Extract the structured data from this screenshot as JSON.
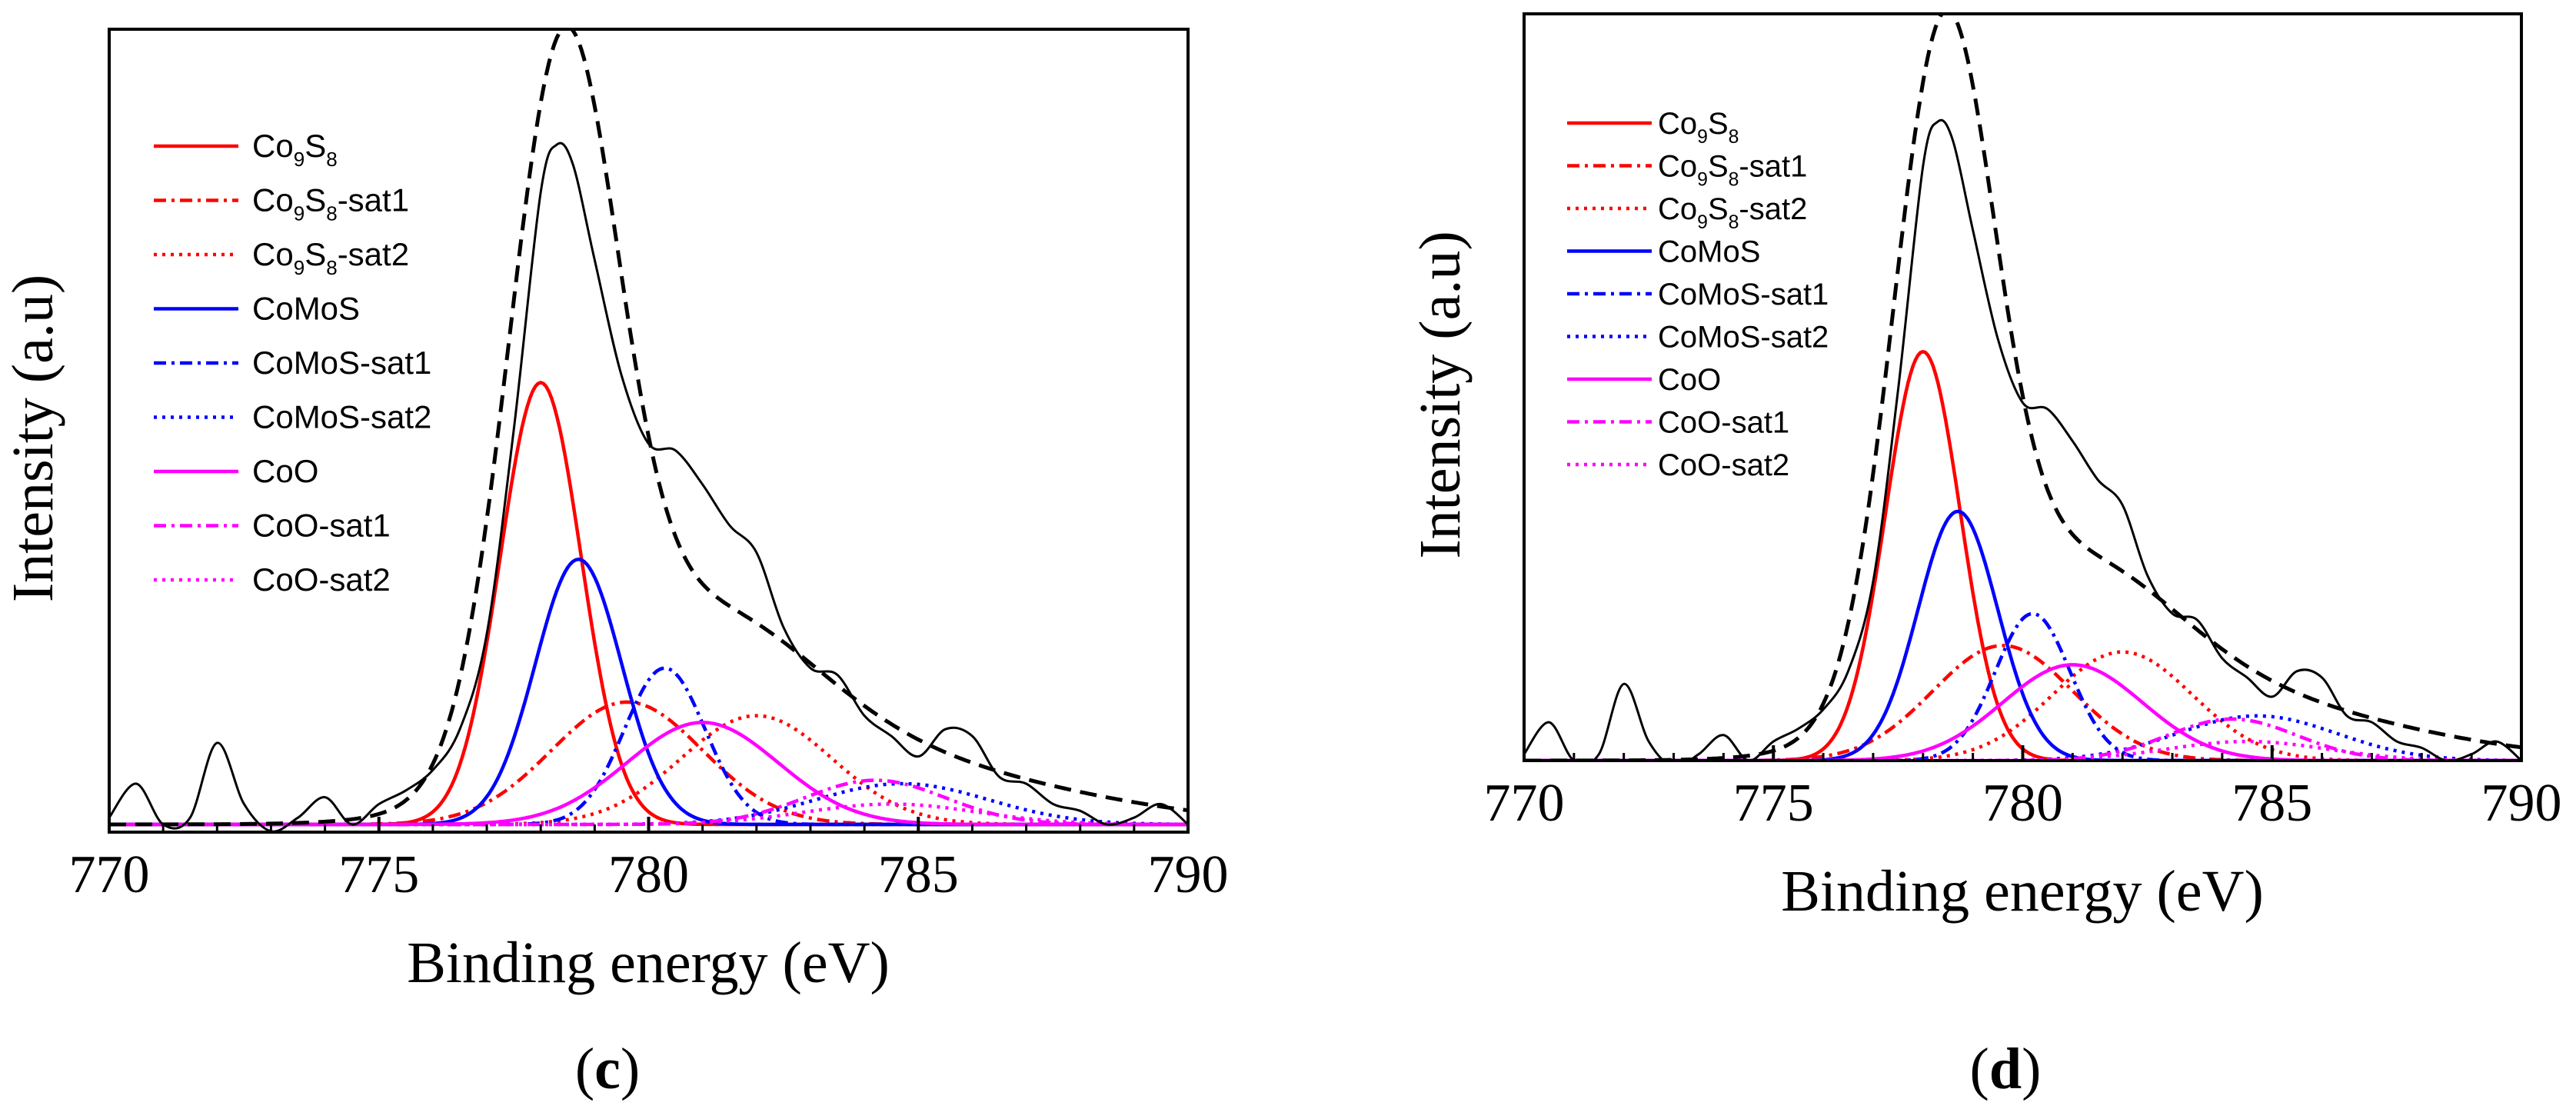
{
  "colors": {
    "axis": "#000000",
    "measured": "#000000",
    "envelope": "#000000",
    "co9s8": "#ff0000",
    "comos": "#0000ff",
    "coo": "#ff00ff"
  },
  "chart_data": [
    {
      "type": "line",
      "panel_label": "c",
      "xlabel": "Binding energy (eV)",
      "ylabel": "Intensity (a.u)",
      "xlim": [
        770,
        790
      ],
      "x_ticks": [
        "770",
        "775",
        "780",
        "785",
        "790"
      ],
      "ylim": [
        0,
        100
      ],
      "legend_position": "top-left",
      "legend": [
        {
          "base": "Co",
          "sub1": "9",
          "mid": "S",
          "sub2": "8",
          "suffix": ""
        },
        {
          "base": "Co",
          "sub1": "9",
          "mid": "S",
          "sub2": "8",
          "suffix": "-sat1"
        },
        {
          "base": "Co",
          "sub1": "9",
          "mid": "S",
          "sub2": "8",
          "suffix": "-sat2"
        },
        {
          "text": "CoMoS"
        },
        {
          "text": "CoMoS-sat1"
        },
        {
          "text": "CoMoS-sat2"
        },
        {
          "text": "CoO"
        },
        {
          "text": "CoO-sat1"
        },
        {
          "text": "CoO-sat2"
        }
      ],
      "measured": {
        "x": [
          770,
          770.5,
          771,
          771.5,
          772,
          772.5,
          773,
          773.5,
          774,
          774.5,
          775,
          775.5,
          776,
          776.5,
          777,
          777.5,
          778,
          778.3,
          778.6,
          779,
          779.5,
          780,
          780.5,
          781,
          781.5,
          782,
          782.5,
          783,
          783.5,
          784,
          784.5,
          785,
          785.5,
          786,
          786.5,
          787,
          787.5,
          788,
          788.5,
          789,
          789.5,
          790
        ],
        "y": [
          1,
          6,
          0,
          1,
          12,
          3,
          -1,
          1,
          4,
          0,
          3,
          5,
          8,
          14,
          28,
          58,
          93,
          100,
          97,
          83,
          66,
          56,
          55,
          50,
          44,
          40,
          29,
          23,
          22,
          16,
          13,
          10,
          14,
          13,
          7,
          6,
          3,
          2,
          0,
          1,
          3,
          0
        ]
      },
      "envelope": {
        "label": "fit envelope",
        "baseline": 0,
        "peaks": [
          [
            778.4,
            99.5,
            1.0
          ],
          [
            780.7,
            26,
            2.2
          ],
          [
            784.0,
            9,
            3.5
          ]
        ]
      },
      "series": [
        {
          "name": "Co9S8",
          "style": "solid",
          "color": "co9s8",
          "center": 778.0,
          "amp": 65,
          "width": 0.75
        },
        {
          "name": "Co9S8-sat1",
          "style": "dashdot",
          "color": "co9s8",
          "center": 779.6,
          "amp": 18,
          "width": 1.4
        },
        {
          "name": "Co9S8-sat2",
          "style": "dotted",
          "color": "co9s8",
          "center": 782.0,
          "amp": 16,
          "width": 1.4
        },
        {
          "name": "CoMoS",
          "style": "solid",
          "color": "comos",
          "center": 778.7,
          "amp": 39,
          "width": 0.8
        },
        {
          "name": "CoMoS-sat1",
          "style": "dashdot",
          "color": "comos",
          "center": 780.3,
          "amp": 23,
          "width": 0.75
        },
        {
          "name": "CoMoS-sat2",
          "style": "dotted",
          "color": "comos",
          "center": 784.7,
          "amp": 6,
          "width": 1.6
        },
        {
          "name": "CoO",
          "style": "solid",
          "color": "coo",
          "center": 781.0,
          "amp": 15,
          "width": 1.4
        },
        {
          "name": "CoO-sat1",
          "style": "dashdot",
          "color": "coo",
          "center": 784.2,
          "amp": 6.5,
          "width": 1.3
        },
        {
          "name": "CoO-sat2",
          "style": "dotted",
          "color": "coo",
          "center": 784.5,
          "amp": 3,
          "width": 1.6
        }
      ]
    },
    {
      "type": "line",
      "panel_label": "d",
      "xlabel": "Binding energy (eV)",
      "ylabel": "Intensity (a.u)",
      "xlim": [
        770,
        790
      ],
      "x_ticks": [
        "770",
        "775",
        "780",
        "785",
        "790"
      ],
      "ylim": [
        0,
        100
      ],
      "legend_position": "top-left",
      "legend": [
        {
          "base": "Co",
          "sub1": "9",
          "mid": "S",
          "sub2": "8",
          "suffix": ""
        },
        {
          "base": "Co",
          "sub1": "9",
          "mid": "S",
          "sub2": "8",
          "suffix": "-sat1"
        },
        {
          "base": "Co",
          "sub1": "9",
          "mid": "S",
          "sub2": "8",
          "suffix": "-sat2"
        },
        {
          "text": "CoMoS"
        },
        {
          "text": "CoMoS-sat1"
        },
        {
          "text": "CoMoS-sat2"
        },
        {
          "text": "CoO"
        },
        {
          "text": "CoO-sat1"
        },
        {
          "text": "CoO-sat2"
        }
      ],
      "measured": {
        "x": [
          770,
          770.5,
          771,
          771.5,
          772,
          772.5,
          773,
          773.5,
          774,
          774.5,
          775,
          775.5,
          776,
          776.5,
          777,
          777.5,
          778,
          778.3,
          778.6,
          779,
          779.5,
          780,
          780.5,
          781,
          781.5,
          782,
          782.5,
          783,
          783.5,
          784,
          784.5,
          785,
          785.5,
          786,
          786.5,
          787,
          787.5,
          788,
          788.5,
          789,
          789.5,
          790
        ],
        "y": [
          1,
          6,
          0,
          1,
          12,
          3,
          -1,
          1,
          4,
          0,
          3,
          5,
          8,
          14,
          28,
          58,
          93,
          100,
          97,
          83,
          66,
          56,
          55,
          50,
          44,
          40,
          29,
          23,
          22,
          16,
          13,
          10,
          14,
          13,
          7,
          6,
          3,
          2,
          0,
          1,
          3,
          0
        ]
      },
      "envelope": {
        "label": "fit envelope",
        "baseline": 0,
        "peaks": [
          [
            778.4,
            99.5,
            1.0
          ],
          [
            780.7,
            26,
            2.2
          ],
          [
            784.0,
            9,
            3.5
          ]
        ]
      },
      "series": [
        {
          "name": "Co9S8",
          "style": "solid",
          "color": "co9s8",
          "center": 778.0,
          "amp": 64,
          "width": 0.75
        },
        {
          "name": "Co9S8-sat1",
          "style": "dashdot",
          "color": "co9s8",
          "center": 779.6,
          "amp": 18,
          "width": 1.4
        },
        {
          "name": "Co9S8-sat2",
          "style": "dotted",
          "color": "co9s8",
          "center": 782.0,
          "amp": 17,
          "width": 1.4
        },
        {
          "name": "CoMoS",
          "style": "solid",
          "color": "comos",
          "center": 778.7,
          "amp": 39,
          "width": 0.8
        },
        {
          "name": "CoMoS-sat1",
          "style": "dashdot",
          "color": "comos",
          "center": 780.2,
          "amp": 23,
          "width": 0.75
        },
        {
          "name": "CoMoS-sat2",
          "style": "dotted",
          "color": "comos",
          "center": 784.7,
          "amp": 7,
          "width": 1.6
        },
        {
          "name": "CoO",
          "style": "solid",
          "color": "coo",
          "center": 781.0,
          "amp": 15,
          "width": 1.4
        },
        {
          "name": "CoO-sat1",
          "style": "dashdot",
          "color": "coo",
          "center": 784.2,
          "amp": 6.5,
          "width": 1.3
        },
        {
          "name": "CoO-sat2",
          "style": "dotted",
          "color": "coo",
          "center": 784.5,
          "amp": 3,
          "width": 1.6
        }
      ]
    }
  ]
}
